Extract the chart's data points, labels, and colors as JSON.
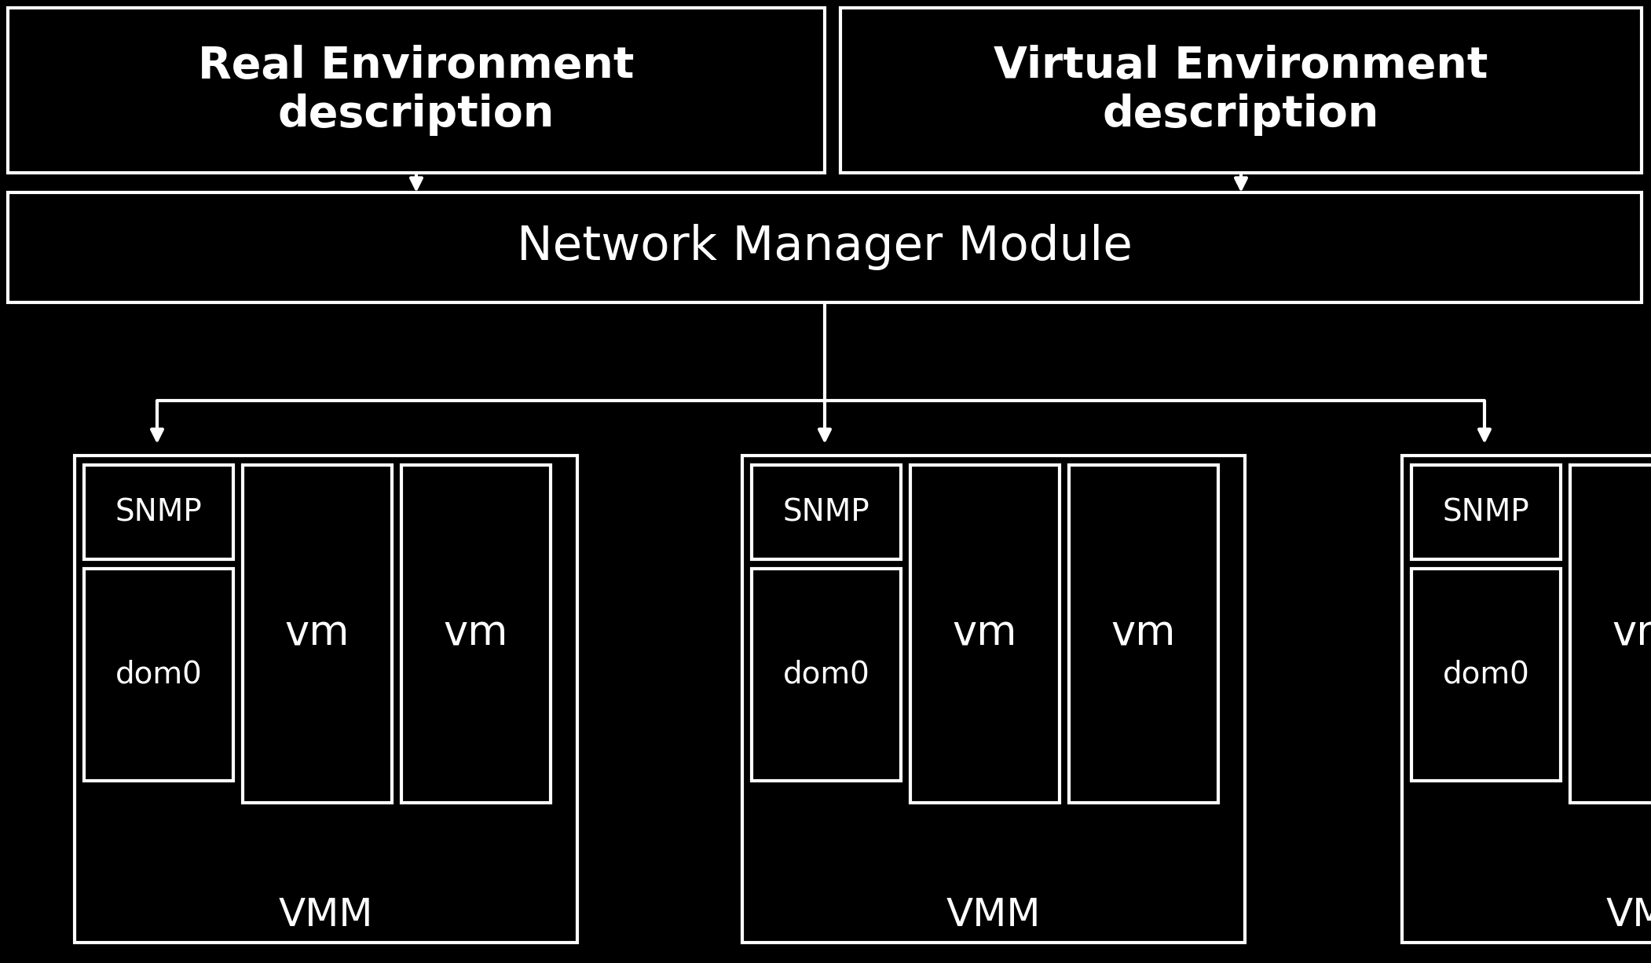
{
  "bg_color": "#000000",
  "fg_color": "#ffffff",
  "title": "Network Manager Module",
  "top_left_label": "Real Environment\ndescription",
  "top_right_label": "Virtual Environment\ndescription",
  "vmm_label": "VMM",
  "snmp_label": "SNMP",
  "dom0_label": "dom0",
  "vm_label": "vm",
  "figsize": [
    21.02,
    12.26
  ],
  "dpi": 100,
  "lw": 3.0
}
